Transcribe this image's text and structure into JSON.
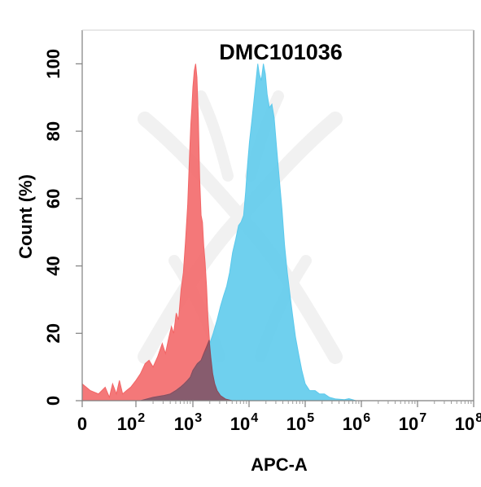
{
  "chart_data": {
    "type": "area",
    "title": "DMC101036",
    "xlabel": "APC-A",
    "ylabel": "Count  (%)",
    "x_scale": "biexponential",
    "xlim": [
      0,
      100000000
    ],
    "ylim": [
      0,
      110
    ],
    "x_ticks": [
      {
        "value": 0,
        "base": "0",
        "exp": ""
      },
      {
        "value": 100,
        "base": "10",
        "exp": "2"
      },
      {
        "value": 1000,
        "base": "10",
        "exp": "3"
      },
      {
        "value": 10000,
        "base": "10",
        "exp": "4"
      },
      {
        "value": 100000,
        "base": "10",
        "exp": "5"
      },
      {
        "value": 1000000,
        "base": "10",
        "exp": "6"
      },
      {
        "value": 10000000,
        "base": "10",
        "exp": "7"
      },
      {
        "value": 100000000,
        "base": "10",
        "exp": "8"
      }
    ],
    "y_ticks": [
      0,
      20,
      40,
      60,
      80,
      100
    ],
    "grid": false,
    "series": [
      {
        "color": "#f26566",
        "points": [
          [
            0,
            5
          ],
          [
            4,
            3
          ],
          [
            8,
            2
          ],
          [
            12,
            4
          ],
          [
            16,
            1
          ],
          [
            20,
            5
          ],
          [
            26,
            2
          ],
          [
            32,
            6
          ],
          [
            40,
            2
          ],
          [
            52,
            3
          ],
          [
            70,
            4
          ],
          [
            100,
            6
          ],
          [
            120,
            8
          ],
          [
            145,
            11
          ],
          [
            170,
            12
          ],
          [
            200,
            10
          ],
          [
            240,
            13
          ],
          [
            290,
            17
          ],
          [
            330,
            14
          ],
          [
            370,
            18
          ],
          [
            420,
            22
          ],
          [
            460,
            20
          ],
          [
            510,
            26
          ],
          [
            560,
            24
          ],
          [
            620,
            33
          ],
          [
            680,
            38
          ],
          [
            740,
            47
          ],
          [
            810,
            58
          ],
          [
            870,
            72
          ],
          [
            920,
            82
          ],
          [
            960,
            87
          ],
          [
            1000,
            93
          ],
          [
            1060,
            98
          ],
          [
            1120,
            100
          ],
          [
            1180,
            96
          ],
          [
            1250,
            84
          ],
          [
            1320,
            66
          ],
          [
            1400,
            55
          ],
          [
            1480,
            53
          ],
          [
            1560,
            46
          ],
          [
            1650,
            41
          ],
          [
            1750,
            34
          ],
          [
            1850,
            25
          ],
          [
            1950,
            19
          ],
          [
            2080,
            13
          ],
          [
            2250,
            8
          ],
          [
            2450,
            5
          ],
          [
            2700,
            3
          ],
          [
            3100,
            1.5
          ],
          [
            3800,
            0.5
          ],
          [
            5000,
            0
          ]
        ]
      },
      {
        "color": "#5bc9ec",
        "points": [
          [
            0,
            0
          ],
          [
            120,
            0
          ],
          [
            200,
            1
          ],
          [
            300,
            1.5
          ],
          [
            400,
            2
          ],
          [
            500,
            3
          ],
          [
            600,
            4
          ],
          [
            700,
            5
          ],
          [
            800,
            6
          ],
          [
            900,
            7
          ],
          [
            1000,
            9
          ],
          [
            1200,
            11
          ],
          [
            1400,
            12
          ],
          [
            1600,
            14
          ],
          [
            1800,
            15
          ],
          [
            2000,
            17
          ],
          [
            2300,
            20
          ],
          [
            2700,
            24
          ],
          [
            3100,
            28
          ],
          [
            3500,
            31
          ],
          [
            4000,
            34
          ],
          [
            4500,
            38
          ],
          [
            5100,
            44
          ],
          [
            5800,
            48
          ],
          [
            6500,
            52
          ],
          [
            7200,
            53
          ],
          [
            8000,
            55
          ],
          [
            8700,
            62
          ],
          [
            9400,
            70
          ],
          [
            10200,
            77
          ],
          [
            11200,
            83
          ],
          [
            12400,
            90
          ],
          [
            13500,
            96
          ],
          [
            14300,
            100
          ],
          [
            15200,
            97
          ],
          [
            16500,
            95
          ],
          [
            18000,
            100
          ],
          [
            19500,
            97
          ],
          [
            21000,
            91
          ],
          [
            23000,
            87
          ],
          [
            25500,
            88
          ],
          [
            28000,
            84
          ],
          [
            31000,
            75
          ],
          [
            34500,
            66
          ],
          [
            38500,
            57
          ],
          [
            43000,
            46
          ],
          [
            48000,
            38
          ],
          [
            54000,
            31
          ],
          [
            60000,
            25
          ],
          [
            67000,
            19
          ],
          [
            76000,
            14
          ],
          [
            87000,
            9
          ],
          [
            100000,
            5
          ],
          [
            120000,
            3
          ],
          [
            150000,
            3
          ],
          [
            180000,
            2
          ],
          [
            220000,
            2
          ],
          [
            270000,
            1
          ],
          [
            350000,
            0.5
          ],
          [
            500000,
            0.3
          ],
          [
            600000,
            0.6
          ],
          [
            800000,
            0
          ]
        ]
      },
      {
        "color": "#8c4a5a",
        "points": [
          [
            0,
            0
          ],
          [
            120,
            0
          ],
          [
            200,
            1
          ],
          [
            300,
            1.5
          ],
          [
            400,
            2
          ],
          [
            500,
            3
          ],
          [
            600,
            4
          ],
          [
            700,
            5
          ],
          [
            800,
            6
          ],
          [
            900,
            7
          ],
          [
            1000,
            9
          ],
          [
            1200,
            11
          ],
          [
            1400,
            12
          ],
          [
            1560,
            14
          ],
          [
            1650,
            15
          ],
          [
            1750,
            16
          ],
          [
            1850,
            17
          ],
          [
            1950,
            18
          ],
          [
            2080,
            13
          ],
          [
            2250,
            8
          ],
          [
            2450,
            5
          ],
          [
            2700,
            3
          ],
          [
            3100,
            1.5
          ],
          [
            3800,
            0.5
          ],
          [
            5000,
            0
          ]
        ]
      }
    ]
  }
}
